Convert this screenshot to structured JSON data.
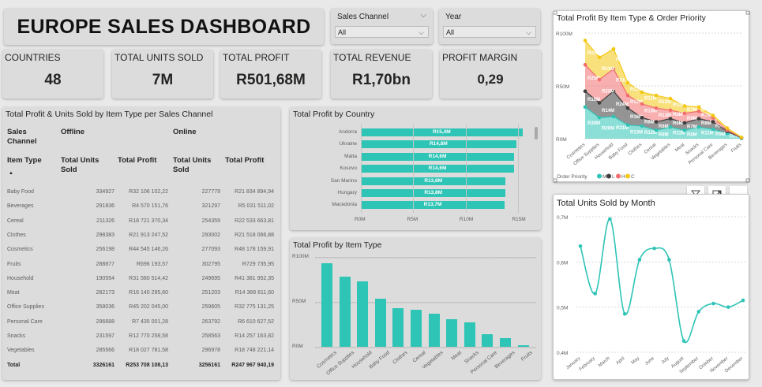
{
  "dashboard": {
    "title": "EUROPE SALES DASHBOARD"
  },
  "slicers": {
    "sales_channel": {
      "label": "Sales Channel",
      "value": "All"
    },
    "year": {
      "label": "Year",
      "value": "All"
    }
  },
  "kpis": [
    {
      "label": "COUNTRIES",
      "value": "48"
    },
    {
      "label": "TOTAL UNITS SOLD",
      "value": "7M"
    },
    {
      "label": "TOTAL PROFIT",
      "value": "R501,68M"
    },
    {
      "label": "TOTAL REVENUE",
      "value": "R1,70bn"
    },
    {
      "label": "PROFIT MARGIN",
      "value": "0,29"
    }
  ],
  "matrix": {
    "title": "Total Profit & Units Sold by Item Type per Sales Channel",
    "header_sales_channel": "Sales Channel",
    "header_item_type": "Item Type",
    "sort_indicator": "▲",
    "channels": [
      "Offline",
      "Online"
    ],
    "col_units": "Total Units Sold",
    "col_profit": "Total Profit",
    "rows": [
      {
        "item": "Baby Food",
        "off_units": "334927",
        "off_profit": "R32 106 102,22",
        "on_units": "227779",
        "on_profit": "R21 834 894,94"
      },
      {
        "item": "Beverages",
        "off_units": "291836",
        "off_profit": "R4 570 151,76",
        "on_units": "321297",
        "on_profit": "R5 031 511,02"
      },
      {
        "item": "Cereal",
        "off_units": "211326",
        "off_profit": "R18 721 370,34",
        "on_units": "254359",
        "on_profit": "R22 533 663,81"
      },
      {
        "item": "Clothes",
        "off_units": "298383",
        "off_profit": "R21 913 247,52",
        "on_units": "293002",
        "on_profit": "R21 518 066,88"
      },
      {
        "item": "Cosmetics",
        "off_units": "256198",
        "off_profit": "R44 545 146,26",
        "on_units": "277093",
        "on_profit": "R48 178 159,91"
      },
      {
        "item": "Fruits",
        "off_units": "288877",
        "off_profit": "R696 193,57",
        "on_units": "302795",
        "on_profit": "R729 735,95"
      },
      {
        "item": "Household",
        "off_units": "190554",
        "off_profit": "R31 580 514,42",
        "on_units": "249695",
        "on_profit": "R41 381 952,35"
      },
      {
        "item": "Meat",
        "off_units": "282173",
        "off_profit": "R16 140 295,60",
        "on_units": "251203",
        "on_profit": "R14 368 811,60"
      },
      {
        "item": "Office Supplies",
        "off_units": "358036",
        "off_profit": "R45 202 045,00",
        "on_units": "259605",
        "on_profit": "R32 775 131,25"
      },
      {
        "item": "Personal Care",
        "off_units": "296688",
        "off_profit": "R7 435 001,28",
        "on_units": "263792",
        "on_profit": "R6 610 627,52"
      },
      {
        "item": "Snacks",
        "off_units": "231597",
        "off_profit": "R12 770 258,58",
        "on_units": "258563",
        "on_profit": "R14 257 163,82"
      },
      {
        "item": "Vegetables",
        "off_units": "285566",
        "off_profit": "R18 027 781,58",
        "on_units": "296978",
        "on_profit": "R18 748 221,14"
      }
    ],
    "total": {
      "item": "Total",
      "off_units": "3326161",
      "off_profit": "R253 708 108,13",
      "on_units": "3256161",
      "on_profit": "R247 967 940,19"
    }
  },
  "charts": {
    "country": {
      "title": "Total Profit by Country",
      "chart_data": {
        "type": "bar",
        "orientation": "horizontal",
        "categories": [
          "Andorra",
          "Ukraine",
          "Malta",
          "Kosovo",
          "San Marino",
          "Hungary",
          "Macedonia"
        ],
        "values": [
          15.4,
          14.8,
          14.6,
          14.6,
          13.8,
          13.8,
          13.7
        ],
        "data_labels": [
          "R15,4M",
          "R14,8M",
          "R14,6M",
          "R14,6M",
          "R13,8M",
          "R13,8M",
          "R13,7M"
        ],
        "xlim": [
          0,
          15.8
        ],
        "x_ticks": [
          "R0M",
          "R5M",
          "R10M",
          "R15M"
        ]
      }
    },
    "item_type": {
      "title": "Total Profit by Item Type",
      "chart_data": {
        "type": "bar",
        "categories": [
          "Cosmetics",
          "Office Supplies",
          "Household",
          "Baby Food",
          "Clothes",
          "Cereal",
          "Vegetables",
          "Meat",
          "Snacks",
          "Personal Care",
          "Beverages",
          "Fruits"
        ],
        "values": [
          92.7,
          78.0,
          73.0,
          53.9,
          43.4,
          41.3,
          36.8,
          30.5,
          27.0,
          14.0,
          9.6,
          1.4
        ],
        "ylim": [
          0,
          100
        ],
        "y_ticks": [
          "R0M",
          "R50M",
          "R100M"
        ]
      }
    },
    "priority": {
      "title": "Total Profit By Item Type & Order Priority",
      "legend_title": "Order Priority",
      "legend": [
        "M",
        "L",
        "H",
        "C"
      ],
      "colors": {
        "M": "#2ec4b6",
        "L": "#3d3d3d",
        "H": "#f26d6d",
        "C": "#f2c811"
      },
      "chart_data": {
        "type": "area",
        "stacked": true,
        "categories": [
          "Cosmetics",
          "Office Supplies",
          "Household",
          "Baby Food",
          "Clothes",
          "Cereal",
          "Vegetables",
          "Meat",
          "Snacks",
          "Personal Care",
          "Beverages",
          "Fruits"
        ],
        "series": [
          {
            "name": "M",
            "values": [
              30,
              20,
              21,
              13,
              12,
              8,
              11,
              8,
              11,
              9,
              5,
              0.5
            ]
          },
          {
            "name": "L",
            "values": [
              15,
              14,
              24,
              16,
              8,
              8,
              8,
              7,
              8,
              7,
              2,
              0.4
            ]
          },
          {
            "name": "H",
            "values": [
              25,
              22,
              21,
              12,
              13,
              13,
              8,
              9,
              7,
              4,
              1,
              0.3
            ]
          },
          {
            "name": "C",
            "values": [
              23,
              21,
              19,
              12,
              11,
              12,
              11,
              7,
              4,
              2,
              2,
              0.2
            ]
          }
        ],
        "labels": {
          "M": [
            "R30M",
            "R20M",
            "R21M",
            "R13M",
            "R12M",
            "R8M",
            "R11M",
            "R8M",
            "R11M",
            "R9M",
            "R5M",
            ""
          ],
          "L": [
            "R15M",
            "R14M",
            "R24M",
            "R16M",
            "R8M",
            "R8M",
            "R8M",
            "R7M",
            "R8M",
            "R7M",
            "",
            ""
          ],
          "H": [
            "R25M",
            "R22M",
            "R21M",
            "R12M",
            "R13M",
            "R13M",
            "R8M",
            "R9M",
            "R7M",
            "R4M",
            "",
            ""
          ],
          "C": [
            "R23M",
            "R21M",
            "R19M",
            "R12M",
            "R11M",
            "R12M",
            "R11M",
            "R7M",
            "R4M",
            "",
            "",
            ""
          ]
        },
        "ylim": [
          0,
          100
        ],
        "y_ticks": [
          "R0M",
          "R50M",
          "R100M"
        ]
      }
    },
    "month": {
      "title": "Total Units Sold by Month",
      "chart_data": {
        "type": "line",
        "categories": [
          "January",
          "February",
          "March",
          "April",
          "May",
          "June",
          "July",
          "August",
          "September",
          "October",
          "November",
          "December"
        ],
        "values": [
          0.635,
          0.53,
          0.695,
          0.485,
          0.605,
          0.63,
          0.605,
          0.425,
          0.49,
          0.508,
          0.5,
          0.515
        ],
        "ylim": [
          0.4,
          0.7
        ],
        "y_ticks": [
          "0,4M",
          "0,5M",
          "0,6M",
          "0,7M"
        ]
      }
    }
  },
  "toolbar": {
    "filter_icon": "filter-icon",
    "focus_icon": "focus-mode-icon",
    "more_icon": "more-options-icon",
    "more_label": "⋯"
  }
}
